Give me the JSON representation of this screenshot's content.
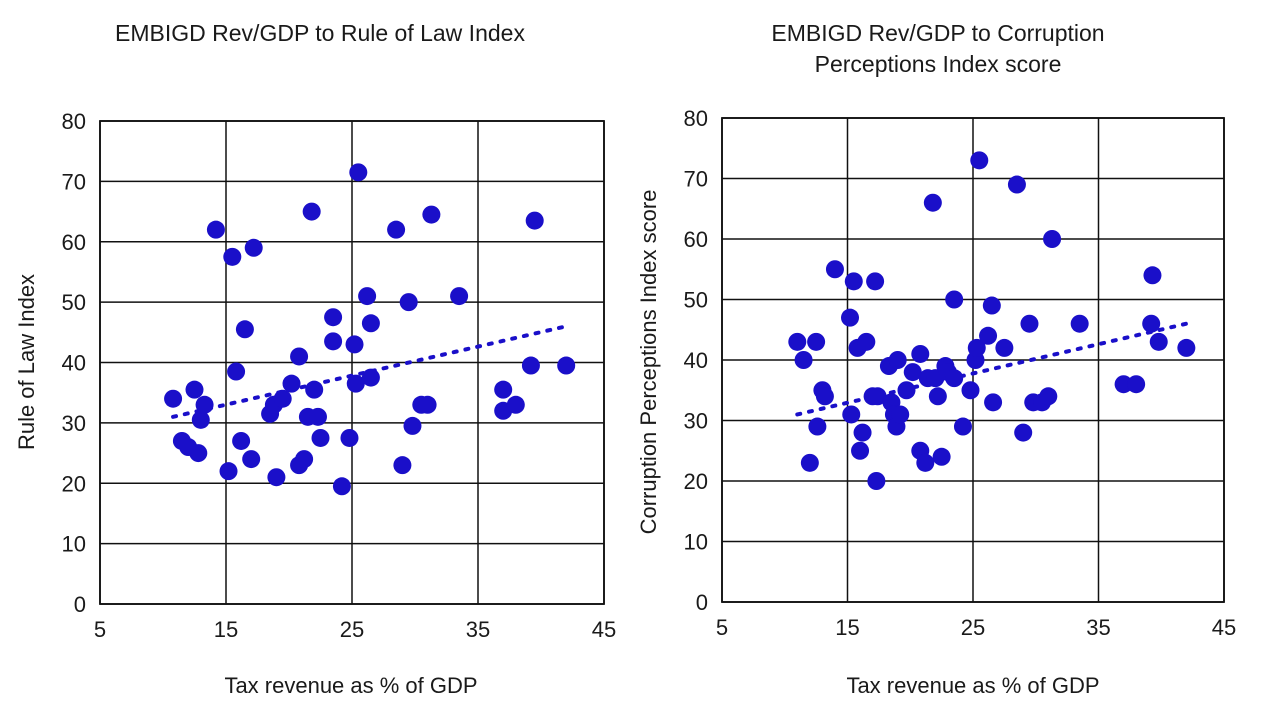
{
  "colors": {
    "point": "#1a0fc9",
    "trend": "#1a0fc9",
    "grid": "#111111",
    "text": "#1a1a1a"
  },
  "chart_data": [
    {
      "type": "scatter",
      "title_lines": [
        "EMBIGD Rev/GDP to Rule of Law Index"
      ],
      "xlabel": "Tax revenue as % of GDP",
      "ylabel": "Rule of Law Index",
      "xlim": [
        5,
        45
      ],
      "ylim": [
        0,
        80
      ],
      "xticks": [
        "5",
        "15",
        "25",
        "35",
        "45"
      ],
      "yticks": [
        "0",
        "10",
        "20",
        "30",
        "40",
        "50",
        "60",
        "70",
        "80"
      ],
      "grid": true,
      "points": [
        [
          10.8,
          34
        ],
        [
          11.5,
          27
        ],
        [
          12.0,
          26
        ],
        [
          12.5,
          35.5
        ],
        [
          12.8,
          25
        ],
        [
          13.0,
          30.5
        ],
        [
          13.3,
          33
        ],
        [
          14.2,
          62
        ],
        [
          15.2,
          22
        ],
        [
          15.5,
          57.5
        ],
        [
          15.8,
          38.5
        ],
        [
          16.2,
          27
        ],
        [
          16.5,
          45.5
        ],
        [
          17.0,
          24
        ],
        [
          17.2,
          59
        ],
        [
          18.5,
          31.5
        ],
        [
          18.8,
          33
        ],
        [
          19.0,
          21
        ],
        [
          19.5,
          34
        ],
        [
          20.2,
          36.5
        ],
        [
          20.8,
          41
        ],
        [
          20.8,
          23
        ],
        [
          21.2,
          24
        ],
        [
          21.5,
          31
        ],
        [
          21.8,
          65
        ],
        [
          22.0,
          35.5
        ],
        [
          22.3,
          31
        ],
        [
          22.5,
          27.5
        ],
        [
          23.5,
          47.5
        ],
        [
          23.5,
          43.5
        ],
        [
          24.2,
          19.5
        ],
        [
          24.8,
          27.5
        ],
        [
          25.2,
          43
        ],
        [
          25.3,
          36.5
        ],
        [
          25.5,
          71.5
        ],
        [
          26.2,
          51
        ],
        [
          26.5,
          37.5
        ],
        [
          26.5,
          46.5
        ],
        [
          28.5,
          62
        ],
        [
          29.0,
          23
        ],
        [
          29.5,
          50
        ],
        [
          29.8,
          29.5
        ],
        [
          30.5,
          33
        ],
        [
          31.0,
          33
        ],
        [
          31.3,
          64.5
        ],
        [
          33.5,
          51
        ],
        [
          37.0,
          35.5
        ],
        [
          37.0,
          32
        ],
        [
          38.0,
          33
        ],
        [
          39.2,
          39.5
        ],
        [
          39.5,
          63.5
        ],
        [
          42.0,
          39.5
        ]
      ],
      "trendline": {
        "x": [
          10.8,
          42.0
        ],
        "y": [
          31,
          46
        ]
      }
    },
    {
      "type": "scatter",
      "title_lines": [
        "EMBIGD Rev/GDP to Corruption",
        "Perceptions Index score"
      ],
      "xlabel": "Tax revenue as % of GDP",
      "ylabel": "Corruption Perceptions Index score",
      "xlim": [
        5,
        45
      ],
      "ylim": [
        0,
        80
      ],
      "xticks": [
        "5",
        "15",
        "25",
        "35",
        "45"
      ],
      "yticks": [
        "0",
        "10",
        "20",
        "30",
        "40",
        "50",
        "60",
        "70",
        "80"
      ],
      "grid": true,
      "points": [
        [
          11.0,
          43
        ],
        [
          11.5,
          40
        ],
        [
          12.0,
          23
        ],
        [
          12.5,
          43
        ],
        [
          12.6,
          29
        ],
        [
          13.0,
          35
        ],
        [
          13.2,
          34
        ],
        [
          14.0,
          55
        ],
        [
          15.2,
          47
        ],
        [
          15.3,
          31
        ],
        [
          15.5,
          53
        ],
        [
          15.8,
          42
        ],
        [
          16.0,
          25
        ],
        [
          16.2,
          28
        ],
        [
          16.5,
          43
        ],
        [
          17.0,
          34
        ],
        [
          17.2,
          53
        ],
        [
          17.3,
          20
        ],
        [
          17.4,
          34
        ],
        [
          18.3,
          39
        ],
        [
          18.5,
          33
        ],
        [
          18.7,
          31
        ],
        [
          18.9,
          29
        ],
        [
          19.0,
          40
        ],
        [
          19.2,
          31
        ],
        [
          19.7,
          35
        ],
        [
          20.2,
          38
        ],
        [
          20.8,
          41
        ],
        [
          20.8,
          25
        ],
        [
          21.2,
          23
        ],
        [
          21.4,
          37
        ],
        [
          21.8,
          66
        ],
        [
          22.0,
          37
        ],
        [
          22.2,
          34
        ],
        [
          22.5,
          24
        ],
        [
          22.8,
          39
        ],
        [
          23.0,
          38
        ],
        [
          23.5,
          37
        ],
        [
          23.5,
          50
        ],
        [
          24.2,
          29
        ],
        [
          24.8,
          35
        ],
        [
          25.2,
          40
        ],
        [
          25.3,
          42
        ],
        [
          25.5,
          73
        ],
        [
          26.2,
          44
        ],
        [
          26.5,
          49
        ],
        [
          26.6,
          33
        ],
        [
          27.5,
          42
        ],
        [
          28.5,
          69
        ],
        [
          29.0,
          28
        ],
        [
          29.5,
          46
        ],
        [
          29.8,
          33
        ],
        [
          30.5,
          33
        ],
        [
          31.0,
          34
        ],
        [
          31.3,
          60
        ],
        [
          33.5,
          46
        ],
        [
          37.0,
          36
        ],
        [
          38.0,
          36
        ],
        [
          39.2,
          46
        ],
        [
          39.3,
          54
        ],
        [
          39.8,
          43
        ],
        [
          42.0,
          42
        ]
      ],
      "trendline": {
        "x": [
          11.0,
          42.0
        ],
        "y": [
          31,
          46
        ]
      }
    }
  ]
}
